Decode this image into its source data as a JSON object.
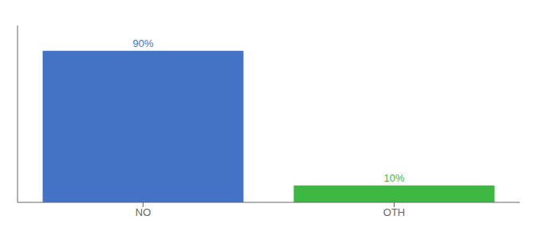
{
  "chart_data": {
    "type": "bar",
    "categories": [
      "NO",
      "OTH"
    ],
    "values": [
      90,
      10
    ],
    "value_labels": [
      "90%",
      "10%"
    ],
    "data_labels": true,
    "colors": [
      "#4472c4",
      "#3cb843"
    ],
    "ylim": [
      0,
      105
    ],
    "tick_labels": "x",
    "grid": false
  }
}
